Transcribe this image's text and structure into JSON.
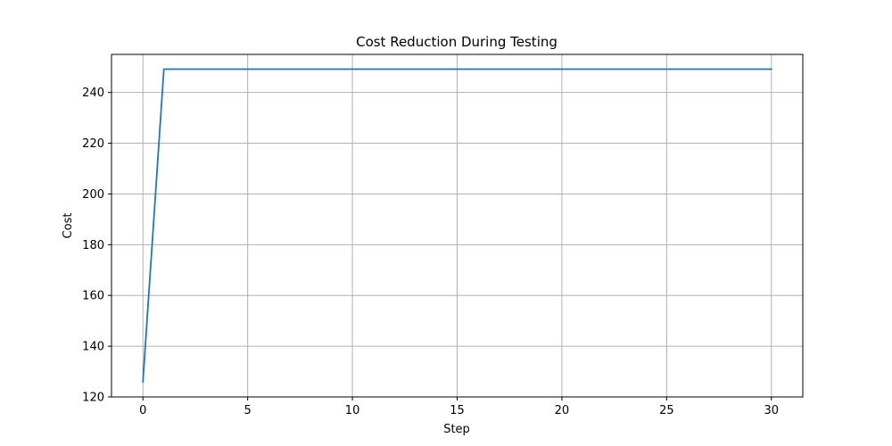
{
  "chart_data": {
    "type": "line",
    "title": "Cost Reduction During Testing",
    "xlabel": "Step",
    "ylabel": "Cost",
    "xlim": [
      -1.5,
      31.5
    ],
    "ylim": [
      120,
      255
    ],
    "xticks": [
      0,
      5,
      10,
      15,
      20,
      25,
      30
    ],
    "yticks": [
      120,
      140,
      160,
      180,
      200,
      220,
      240
    ],
    "grid": true,
    "series": [
      {
        "color": "#1f77b4",
        "x": [
          0,
          1,
          2,
          3,
          4,
          5,
          6,
          7,
          8,
          9,
          10,
          11,
          12,
          13,
          14,
          15,
          16,
          17,
          18,
          19,
          20,
          21,
          22,
          23,
          24,
          25,
          26,
          27,
          28,
          29,
          30
        ],
        "y": [
          126,
          249.2,
          249.2,
          249.2,
          249.2,
          249.2,
          249.2,
          249.2,
          249.2,
          249.2,
          249.2,
          249.2,
          249.2,
          249.2,
          249.2,
          249.2,
          249.2,
          249.2,
          249.2,
          249.2,
          249.2,
          249.2,
          249.2,
          249.2,
          249.2,
          249.2,
          249.2,
          249.2,
          249.2,
          249.2,
          249.2
        ]
      }
    ]
  }
}
